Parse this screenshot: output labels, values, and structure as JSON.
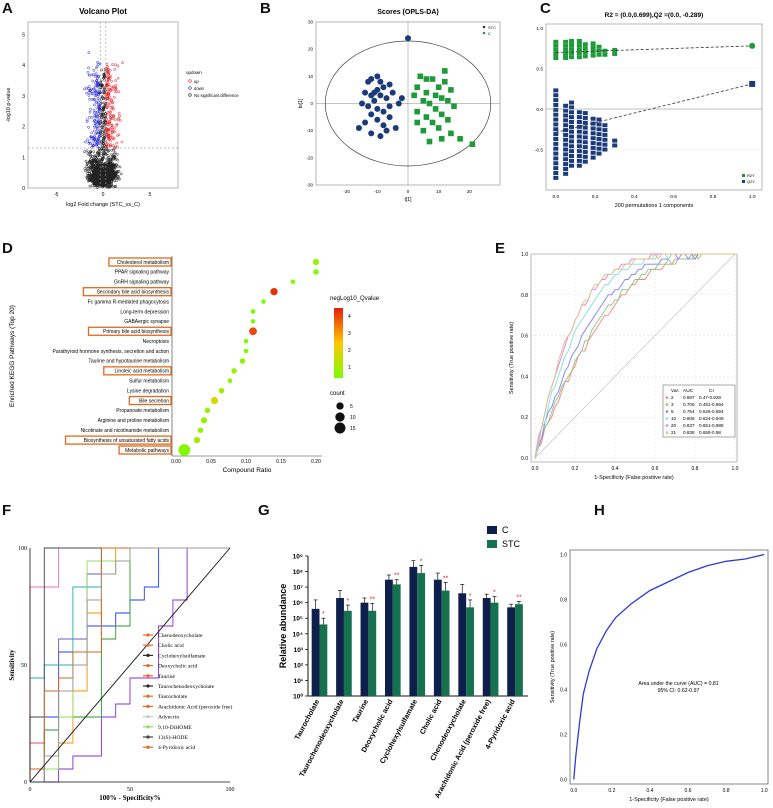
{
  "panels": {
    "A": {
      "label": "A",
      "title": "Volcano Plot",
      "xlabel": "log2 Fold change (STC_vs_C)",
      "ylabel": "-log10 p-value",
      "xticks": [
        "-5",
        "0",
        "5"
      ],
      "yticks": [
        "0",
        "1",
        "2",
        "3",
        "4",
        "5"
      ],
      "legend": {
        "title": "updown",
        "items": [
          {
            "name": "up",
            "color": "#e8232a"
          },
          {
            "name": "down",
            "color": "#2b2bd8"
          },
          {
            "name": "No significant difference",
            "color": "#222222"
          }
        ]
      }
    },
    "B": {
      "label": "B",
      "title": "Scores (OPLS-DA)",
      "xlabel": "t[1]",
      "ylabel": "to[1]",
      "xticks": [
        "-20",
        "-10",
        "0",
        "10",
        "20"
      ],
      "yticks": [
        "-30",
        "-20",
        "-10",
        "0",
        "10",
        "20",
        "30"
      ],
      "legend": [
        {
          "name": "STC",
          "color": "#1a3a7a"
        },
        {
          "name": "C",
          "color": "#1f9a3a"
        }
      ]
    },
    "C": {
      "label": "C",
      "title": "R2 = (0.0,0.699),Q2 =(0.0, -0.289)",
      "xlabel": "200 permutations 1 components",
      "xticks": [
        "0.0",
        "0.2",
        "0.4",
        "0.6",
        "0.8",
        "1.0"
      ],
      "yticks": [
        "-0.5",
        "0.0",
        "0.5",
        "1.0"
      ],
      "legend": [
        {
          "name": "R2Y",
          "color": "#1f9a3a"
        },
        {
          "name": "Q2Y",
          "color": "#1a3a7a"
        }
      ]
    },
    "D": {
      "label": "D",
      "ylabel": "Enriched KEGG Pathways (Top 20)",
      "xlabel": "Compound Ratio",
      "xticks": [
        "0.00",
        "0.05",
        "0.10",
        "0.15",
        "0.20"
      ],
      "color_title": "negLog10_Qvalue",
      "color_ticks": [
        "4",
        "3",
        "2",
        "1"
      ],
      "size_title": "count",
      "size_ticks": [
        "5",
        "10",
        "15"
      ]
    },
    "E": {
      "label": "E",
      "ylabel": "Sensitivity (True positive rate)",
      "xlabel": "1-Specificity (False positive rate)",
      "xticks": [
        "0.0",
        "0.2",
        "0.4",
        "0.6",
        "0.8",
        "1.0"
      ],
      "yticks": [
        "0.0",
        "0.2",
        "0.4",
        "0.6",
        "0.8",
        "1.0"
      ],
      "legend_header": {
        "var": "Var.",
        "auc": "AUC",
        "ci": "CI"
      }
    },
    "F": {
      "label": "F",
      "ylabel": "Sensitivity",
      "xlabel": "100% - Specificity%",
      "xticks": [
        "0",
        "50",
        "100"
      ],
      "yticks": [
        "0",
        "50",
        "100"
      ]
    },
    "G": {
      "label": "G",
      "ylabel": "Relative abundance",
      "yticks": [
        "10⁰",
        "10¹",
        "10²",
        "10³",
        "10⁴",
        "10⁵",
        "10⁶",
        "10⁷",
        "10⁸",
        "10⁹"
      ],
      "legend": [
        {
          "name": "C",
          "color": "#0d1f4a"
        },
        {
          "name": "STC",
          "color": "#16714f"
        }
      ]
    },
    "H": {
      "label": "H",
      "ylabel": "Sensitivity (True positive rate)",
      "xlabel": "1-Specificity (False positive rate)",
      "xticks": [
        "0.0",
        "0.2",
        "0.4",
        "0.6",
        "0.8",
        "1.0"
      ],
      "yticks": [
        "0.0",
        "0.2",
        "0.4",
        "0.6",
        "0.8",
        "1.0"
      ],
      "annotation": [
        "Area under the curve (AUC) = 0.81",
        "95% CI: 0.62-0.97"
      ]
    }
  },
  "chart_data": [
    {
      "panel": "A",
      "type": "scatter",
      "title": "Volcano Plot",
      "xlabel": "log2 Fold change (STC_vs_C)",
      "ylabel": "-log10 p-value",
      "xlim": [
        -8,
        8
      ],
      "ylim": [
        0,
        5.4
      ],
      "threshold_y": 1.3,
      "threshold_x": [
        -0.3,
        0.3
      ],
      "series": [
        {
          "name": "up",
          "color": "#e8232a"
        },
        {
          "name": "down",
          "color": "#2b2bd8"
        },
        {
          "name": "No significant difference",
          "color": "#222222"
        }
      ]
    },
    {
      "panel": "B",
      "type": "scatter",
      "title": "Scores (OPLS-DA)",
      "xlim": [
        -30,
        30
      ],
      "ylim": [
        -30,
        30
      ],
      "series": [
        {
          "name": "STC",
          "color": "#1a3a7a",
          "points": [
            [
              -10,
              10
            ],
            [
              -9,
              8
            ],
            [
              -12,
              9
            ],
            [
              -13,
              8
            ],
            [
              -8,
              6
            ],
            [
              -6,
              7
            ],
            [
              -10,
              5
            ],
            [
              -14,
              4
            ],
            [
              -12,
              3
            ],
            [
              -9,
              3
            ],
            [
              -7,
              2
            ],
            [
              -11,
              1
            ],
            [
              -15,
              0
            ],
            [
              -13,
              -1
            ],
            [
              -10,
              -2
            ],
            [
              -8,
              -3
            ],
            [
              -6,
              -1
            ],
            [
              -12,
              -4
            ],
            [
              -10,
              -6
            ],
            [
              -14,
              -7
            ],
            [
              -16,
              -9
            ],
            [
              -8,
              -8
            ],
            [
              -6,
              -5
            ],
            [
              -3,
              0
            ],
            [
              -2,
              2
            ],
            [
              -12,
              -11
            ],
            [
              -7,
              -10
            ],
            [
              -9,
              -12
            ],
            [
              -4,
              -9
            ],
            [
              0,
              24
            ],
            [
              -11,
              4
            ],
            [
              -5,
              4
            ]
          ]
        },
        {
          "name": "C",
          "color": "#1f9a3a",
          "points": [
            [
              4,
              10
            ],
            [
              6,
              9
            ],
            [
              8,
              9
            ],
            [
              12,
              8
            ],
            [
              10,
              6
            ],
            [
              14,
              5
            ],
            [
              3,
              6
            ],
            [
              6,
              4
            ],
            [
              9,
              3
            ],
            [
              11,
              2
            ],
            [
              13,
              1
            ],
            [
              5,
              1
            ],
            [
              7,
              0
            ],
            [
              15,
              -1
            ],
            [
              9,
              -2
            ],
            [
              3,
              -3
            ],
            [
              11,
              -4
            ],
            [
              6,
              -5
            ],
            [
              13,
              -6
            ],
            [
              8,
              -7
            ],
            [
              10,
              -9
            ],
            [
              5,
              -10
            ],
            [
              14,
              -11
            ],
            [
              11,
              -13
            ],
            [
              17,
              -13
            ],
            [
              21,
              -15
            ],
            [
              3,
              -7
            ],
            [
              7,
              -14
            ],
            [
              12,
              12
            ],
            [
              2,
              3
            ]
          ]
        }
      ]
    },
    {
      "panel": "C",
      "type": "scatter",
      "title": "R2 = (0.0,0.699),Q2 =(0.0, -0.289)",
      "xlim": [
        -0.05,
        1.05
      ],
      "ylim": [
        -1.0,
        1.05
      ],
      "series": [
        {
          "name": "R2Y",
          "color": "#1f9a3a",
          "original": [
            1.0,
            0.78
          ],
          "intercept": 0.699,
          "perm_x": [
            0,
            0.05,
            0.08,
            0.12,
            0.15,
            0.19,
            0.22,
            0.25,
            0.3
          ],
          "perm_range": [
            [
              0.63,
              0.85
            ],
            [
              0.63,
              0.86
            ],
            [
              0.64,
              0.85
            ],
            [
              0.64,
              0.85
            ],
            [
              0.65,
              0.83
            ],
            [
              0.66,
              0.82
            ],
            [
              0.67,
              0.8
            ],
            [
              0.67,
              0.77
            ],
            [
              0.68,
              0.74
            ]
          ]
        },
        {
          "name": "Q2Y",
          "color": "#1a3a7a",
          "original": [
            1.0,
            0.31
          ],
          "intercept": -0.289,
          "perm_x": [
            0,
            0.05,
            0.08,
            0.12,
            0.15,
            0.19,
            0.22,
            0.25,
            0.3
          ],
          "perm_range": [
            [
              -0.85,
              0.25
            ],
            [
              -0.8,
              0.1
            ],
            [
              -0.7,
              0.1
            ],
            [
              -0.7,
              0.0
            ],
            [
              -0.65,
              -0.05
            ],
            [
              -0.6,
              -0.1
            ],
            [
              -0.55,
              -0.1
            ],
            [
              -0.5,
              -0.2
            ],
            [
              -0.45,
              -0.35
            ]
          ]
        }
      ]
    },
    {
      "panel": "D",
      "type": "scatter",
      "xlabel": "Compound Ratio",
      "ylabel": "Enriched KEGG Pathways (Top 20)",
      "xlim": [
        0,
        0.2
      ],
      "categories": [
        {
          "name": "Cholesterol metabolism",
          "x": 0.2,
          "q": 1.4,
          "count": 3,
          "box": true
        },
        {
          "name": "PPAR signaling pathway",
          "x": 0.2,
          "q": 1.0,
          "count": 2,
          "box": false
        },
        {
          "name": "GnRH signaling pathway",
          "x": 0.167,
          "q": 1.0,
          "count": 1,
          "box": false
        },
        {
          "name": "Secondary bile acid biosynthesis",
          "x": 0.14,
          "q": 4.8,
          "count": 5,
          "box": true
        },
        {
          "name": "Fc gamma R-mediated phagocytosis",
          "x": 0.125,
          "q": 1.0,
          "count": 1,
          "box": false
        },
        {
          "name": "Long-term depression",
          "x": 0.11,
          "q": 1.0,
          "count": 1,
          "box": false
        },
        {
          "name": "GABAergic synapse",
          "x": 0.11,
          "q": 1.0,
          "count": 1,
          "box": false
        },
        {
          "name": "Primary bile acid biosynthesis",
          "x": 0.11,
          "q": 4.5,
          "count": 6,
          "box": true
        },
        {
          "name": "Necroptosis",
          "x": 0.1,
          "q": 1.0,
          "count": 1,
          "box": false
        },
        {
          "name": "Parathyroid hormone synthesis, secretion and action",
          "x": 0.1,
          "q": 1.0,
          "count": 1,
          "box": false
        },
        {
          "name": "Taurine and hypotaurine metabolism",
          "x": 0.095,
          "q": 1.2,
          "count": 2,
          "box": false
        },
        {
          "name": "Linoleic acid metabolism",
          "x": 0.083,
          "q": 1.4,
          "count": 2,
          "box": true
        },
        {
          "name": "Sulfur metabolism",
          "x": 0.077,
          "q": 1.3,
          "count": 1,
          "box": false
        },
        {
          "name": "Lysine degradation",
          "x": 0.065,
          "q": 1.6,
          "count": 2,
          "box": false
        },
        {
          "name": "Bile secretion",
          "x": 0.055,
          "q": 2.4,
          "count": 5,
          "box": true
        },
        {
          "name": "Propanoate metabolism",
          "x": 0.045,
          "q": 1.4,
          "count": 2,
          "box": false
        },
        {
          "name": "Arginine and proline metabolism",
          "x": 0.04,
          "q": 1.5,
          "count": 3,
          "box": false
        },
        {
          "name": "Nicotinate and nicotinamide metabolism",
          "x": 0.035,
          "q": 1.3,
          "count": 2,
          "box": false
        },
        {
          "name": "Biosynthesis of unsaturated fatty acids",
          "x": 0.03,
          "q": 1.6,
          "count": 3,
          "box": true
        },
        {
          "name": "Metabolic pathways",
          "x": 0.012,
          "q": 1.1,
          "count": 18,
          "box": true
        }
      ]
    },
    {
      "panel": "E",
      "type": "line",
      "xlabel": "1-Specificity (False positive rate)",
      "ylabel": "Sensitivity (True positive rate)",
      "xlim": [
        0,
        1
      ],
      "ylim": [
        0,
        1
      ],
      "series": [
        {
          "name": "2",
          "auc": "0.687",
          "ci": "0.47-0.928",
          "color": "#ff7f7f"
        },
        {
          "name": "3",
          "auc": "0.706",
          "ci": "0.481-0.894",
          "color": "#7fc97f"
        },
        {
          "name": "5",
          "auc": "0.754",
          "ci": "0.526-0.894",
          "color": "#7f7fff"
        },
        {
          "name": "10",
          "auc": "0.806",
          "ci": "0.624-0.949",
          "color": "#7fdfdf"
        },
        {
          "name": "20",
          "auc": "0.837",
          "ci": "0.651-0.988",
          "color": "#df7fdf"
        },
        {
          "name": "21",
          "auc": "0.838",
          "ci": "0.658-0.98",
          "color": "#dfc07f"
        }
      ]
    },
    {
      "panel": "F",
      "type": "line",
      "xlabel": "100% - Specificity%",
      "ylabel": "Sensitivity",
      "xlim": [
        0,
        100
      ],
      "ylim": [
        0,
        100
      ],
      "series": [
        {
          "name": "Chenodeoxycholate",
          "color": "#e86a2a"
        },
        {
          "name": "Cholic acid",
          "color": "#e86a2a"
        },
        {
          "name": "Cyclohexylsulfamate",
          "color": "#2a2a2a"
        },
        {
          "name": "Deoxycholic acid",
          "color": "#e86a2a"
        },
        {
          "name": "Taurine",
          "color": "#e86a2a"
        },
        {
          "name": "Taurochenodeoxycholate",
          "color": "#2a2a2a"
        },
        {
          "name": "Taurocholate",
          "color": "#e86a2a"
        },
        {
          "name": "Arachidonic Acid (peroxide free)",
          "color": "#e86a2a"
        },
        {
          "name": "Adyncrin",
          "color": "#cccccc"
        },
        {
          "name": "9,10-DiHOME",
          "color": "#8be060"
        },
        {
          "name": "13(S)-HODE",
          "color": "#444444"
        },
        {
          "name": "4-Pyridoxic acid",
          "color": "#e86a2a"
        }
      ]
    },
    {
      "panel": "G",
      "type": "bar",
      "ylabel": "Relative abundance",
      "yscale": "log",
      "ylim": [
        1,
        1000000000
      ],
      "categories": [
        "Taurocholate",
        "Taurochenodeoxycholate",
        "Taurine",
        "Deoxycholic acid",
        "Cyclohexylsulfamate",
        "Cholic acid",
        "Chenodeoxycholate",
        "Arachidonic Acid (peroxide free)",
        "4-Pyridoxic acid"
      ],
      "significance": [
        "*",
        "*",
        "**",
        "**",
        "*",
        "**",
        "*",
        "*",
        "**"
      ],
      "series": [
        {
          "name": "C",
          "color": "#0d1f4a",
          "values": [
            400000,
            2000000,
            1000000,
            30000000,
            200000000,
            30000000,
            4000000,
            2000000,
            500000
          ],
          "err_hi": [
            1500000,
            6000000,
            2000000,
            60000000,
            500000000,
            80000000,
            15000000,
            3500000,
            800000
          ]
        },
        {
          "name": "STC",
          "color": "#16714f",
          "values": [
            40000,
            300000,
            300000,
            15000000,
            80000000,
            6000000,
            500000,
            1000000,
            800000
          ],
          "err_hi": [
            100000,
            700000,
            900000,
            30000000,
            250000000,
            20000000,
            1500000,
            2500000,
            1200000
          ]
        }
      ]
    },
    {
      "panel": "H",
      "type": "line",
      "xlabel": "1-Specificity (False positive rate)",
      "ylabel": "Sensitivity (True positive rate)",
      "xlim": [
        0,
        1
      ],
      "ylim": [
        0,
        1
      ],
      "series": [
        {
          "name": "ROC",
          "color": "#2b3bd8",
          "x": [
            0,
            0.01,
            0.03,
            0.05,
            0.08,
            0.12,
            0.17,
            0.22,
            0.3,
            0.4,
            0.5,
            0.6,
            0.7,
            0.8,
            0.9,
            1.0
          ],
          "y": [
            0,
            0.1,
            0.25,
            0.38,
            0.48,
            0.58,
            0.66,
            0.72,
            0.78,
            0.84,
            0.88,
            0.92,
            0.95,
            0.97,
            0.98,
            1.0
          ]
        }
      ],
      "auc": "0.81"
    }
  ]
}
